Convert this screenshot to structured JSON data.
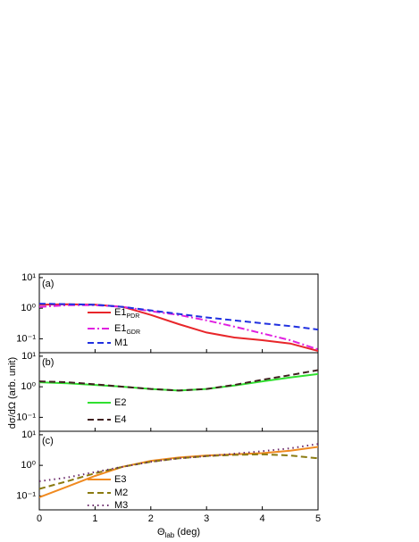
{
  "y_label": "dσ/dΩ (arb. unit)",
  "x_label": {
    "symbol": "Θ",
    "subscript": "lab",
    "unit": " (deg)"
  },
  "chart_data": [
    {
      "type": "line",
      "panel_label": "(a)",
      "log_y": true,
      "x_tick_labels": false,
      "xlim": [
        0,
        5
      ],
      "xticks": [
        0,
        1,
        2,
        3,
        4,
        5
      ],
      "ylim": [
        0.035,
        13
      ],
      "yticks": [
        {
          "value": 10,
          "label": "10¹"
        },
        {
          "value": 1,
          "label": "10⁰"
        },
        {
          "value": 0.1,
          "label": "10⁻¹"
        }
      ],
      "x": [
        0,
        0.5,
        1,
        1.5,
        2,
        2.5,
        3,
        3.5,
        4,
        4.5,
        5
      ],
      "series": [
        {
          "name": "E1",
          "subscript": "PDR",
          "color": "#e8262a",
          "style": "solid",
          "values": [
            1.3,
            1.35,
            1.3,
            1.1,
            0.6,
            0.3,
            0.16,
            0.11,
            0.09,
            0.07,
            0.04
          ]
        },
        {
          "name": "E1",
          "subscript": "GDR",
          "color": "#e020e0",
          "style": "dashdot",
          "values": [
            1.1,
            1.25,
            1.25,
            1.1,
            0.8,
            0.6,
            0.4,
            0.25,
            0.15,
            0.09,
            0.045
          ]
        },
        {
          "name": "M1",
          "color": "#2030e0",
          "style": "dash",
          "values": [
            1.4,
            1.35,
            1.3,
            1.1,
            0.85,
            0.65,
            0.5,
            0.4,
            0.32,
            0.26,
            0.2
          ]
        }
      ]
    },
    {
      "type": "line",
      "panel_label": "(b)",
      "log_y": true,
      "x_tick_labels": false,
      "xlim": [
        0,
        5
      ],
      "xticks": [
        0,
        1,
        2,
        3,
        4,
        5
      ],
      "ylim": [
        0.035,
        13
      ],
      "yticks": [
        {
          "value": 10,
          "label": "10¹"
        },
        {
          "value": 1,
          "label": "10⁰"
        },
        {
          "value": 0.1,
          "label": "10⁻¹"
        }
      ],
      "x": [
        0,
        0.5,
        1,
        1.5,
        2,
        2.5,
        3,
        3.5,
        4,
        4.5,
        5
      ],
      "series": [
        {
          "name": "E2",
          "color": "#30e030",
          "style": "solid",
          "values": [
            1.4,
            1.3,
            1.15,
            1.0,
            0.85,
            0.75,
            0.85,
            1.1,
            1.5,
            2.0,
            2.6
          ]
        },
        {
          "name": "E4",
          "color": "#402020",
          "style": "dash",
          "values": [
            1.5,
            1.4,
            1.2,
            1.0,
            0.85,
            0.75,
            0.85,
            1.15,
            1.7,
            2.4,
            3.5
          ]
        }
      ]
    },
    {
      "type": "line",
      "panel_label": "(c)",
      "log_y": true,
      "x_tick_labels": true,
      "xlim": [
        0,
        5
      ],
      "xticks": [
        0,
        1,
        2,
        3,
        4,
        5
      ],
      "ylim": [
        0.035,
        13
      ],
      "yticks": [
        {
          "value": 10,
          "label": "10¹"
        },
        {
          "value": 1,
          "label": "10⁰"
        },
        {
          "value": 0.1,
          "label": "10⁻¹"
        }
      ],
      "x": [
        0,
        0.5,
        1,
        1.5,
        2,
        2.5,
        3,
        3.5,
        4,
        4.5,
        5
      ],
      "series": [
        {
          "name": "E3",
          "color": "#f08a20",
          "style": "solid",
          "values": [
            0.09,
            0.2,
            0.45,
            0.9,
            1.4,
            1.8,
            2.1,
            2.3,
            2.5,
            3.0,
            4.0
          ]
        },
        {
          "name": "M2",
          "color": "#8a7a10",
          "style": "dash",
          "values": [
            0.17,
            0.3,
            0.55,
            0.9,
            1.3,
            1.7,
            2.0,
            2.2,
            2.3,
            2.1,
            1.7
          ]
        },
        {
          "name": "M3",
          "color": "#6a2a6a",
          "style": "dot",
          "values": [
            0.3,
            0.4,
            0.6,
            0.9,
            1.3,
            1.7,
            2.0,
            2.4,
            2.9,
            3.6,
            5.0
          ]
        }
      ]
    }
  ]
}
